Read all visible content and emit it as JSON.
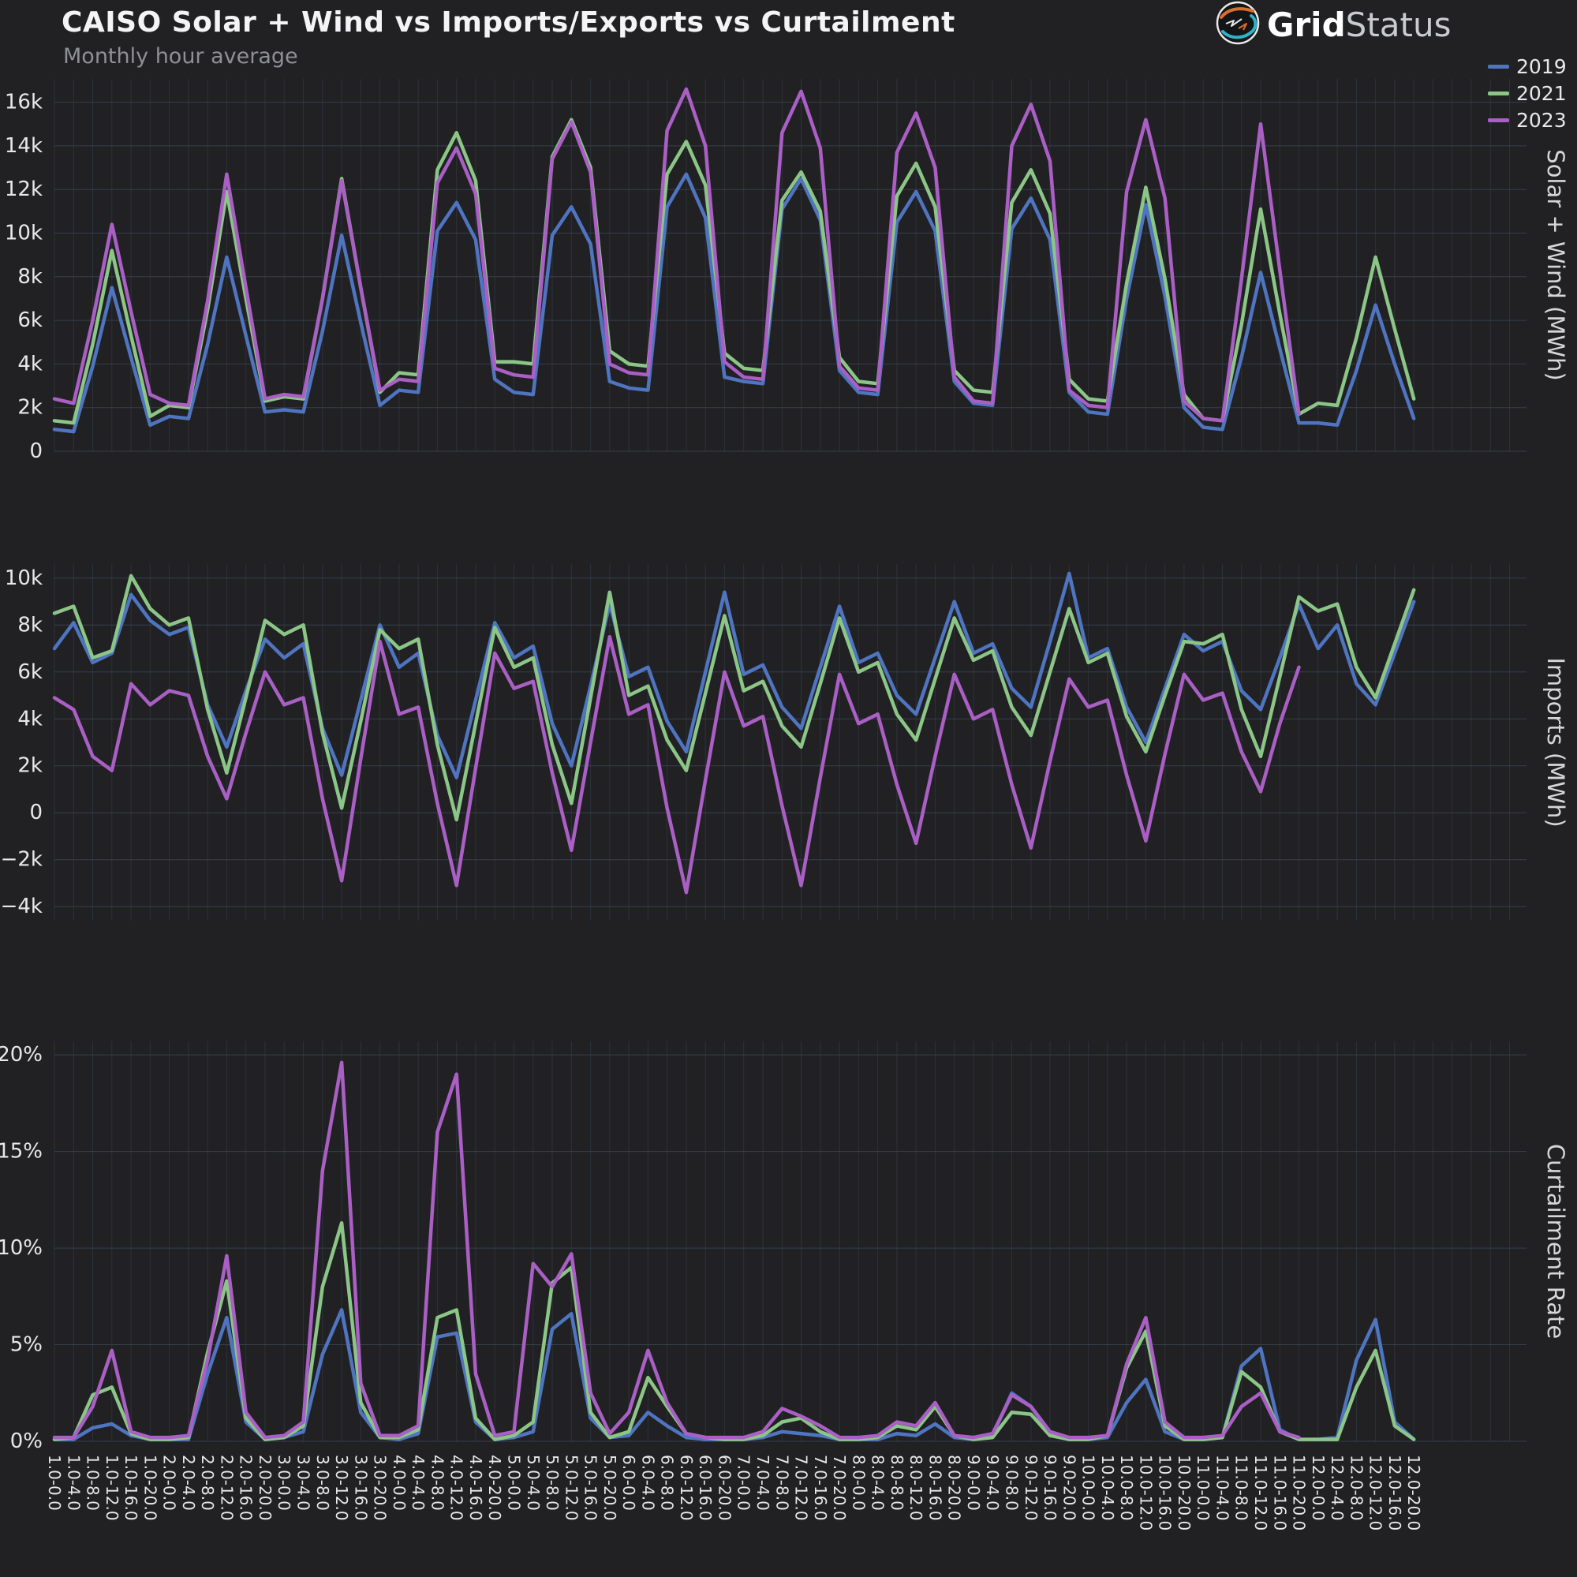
{
  "header": {
    "title": "CAISO Solar + Wind vs Imports/Exports vs Curtailment",
    "subtitle": "Monthly hour average",
    "logo": {
      "bold": "Grid",
      "light": "Status"
    }
  },
  "legend": [
    {
      "label": "2019",
      "color": "#4f74c0"
    },
    {
      "label": "2021",
      "color": "#8cc687"
    },
    {
      "label": "2023",
      "color": "#aa5fc5"
    }
  ],
  "chart_data": {
    "type": "line",
    "title": "CAISO Solar + Wind vs Imports/Exports vs Curtailment",
    "subtitle": "Monthly hour average",
    "x_axis_note": "month.0-hour.0 (monthly hour average, 4-hour steps), Jan-Dec; 2023 data ends in November",
    "grid": true,
    "legend_position": "top-right",
    "background_color": "#212124",
    "grid_color": "#3a4754",
    "tick_color": "#e8e8ea",
    "axis_title_color": "#d6d6d8",
    "series_names": [
      "2019",
      "2021",
      "2023"
    ],
    "x_tick_labels": [
      "1.0-0.0",
      "1.0-4.0",
      "1.0-8.0",
      "1.0-12.0",
      "1.0-16.0",
      "1.0-20.0",
      "2.0-0.0",
      "2.0-4.0",
      "2.0-8.0",
      "2.0-12.0",
      "2.0-16.0",
      "2.0-20.0",
      "3.0-0.0",
      "3.0-4.0",
      "3.0-8.0",
      "3.0-12.0",
      "3.0-16.0",
      "3.0-20.0",
      "4.0-0.0",
      "4.0-4.0",
      "4.0-8.0",
      "4.0-12.0",
      "4.0-16.0",
      "4.0-20.0",
      "5.0-0.0",
      "5.0-4.0",
      "5.0-8.0",
      "5.0-12.0",
      "5.0-16.0",
      "5.0-20.0",
      "6.0-0.0",
      "6.0-4.0",
      "6.0-8.0",
      "6.0-12.0",
      "6.0-16.0",
      "6.0-20.0",
      "7.0-0.0",
      "7.0-4.0",
      "7.0-8.0",
      "7.0-12.0",
      "7.0-16.0",
      "7.0-20.0",
      "8.0-0.0",
      "8.0-4.0",
      "8.0-8.0",
      "8.0-12.0",
      "8.0-16.0",
      "8.0-20.0",
      "9.0-0.0",
      "9.0-4.0",
      "9.0-8.0",
      "9.0-12.0",
      "9.0-16.0",
      "9.0-20.0",
      "10.0-0.0",
      "10.0-4.0",
      "10.0-8.0",
      "10.0-12.0",
      "10.0-16.0",
      "10.0-20.0",
      "11.0-0.0",
      "11.0-4.0",
      "11.0-8.0",
      "11.0-12.0",
      "11.0-16.0",
      "11.0-20.0",
      "12.0-0.0",
      "12.0-4.0",
      "12.0-8.0",
      "12.0-12.0",
      "12.0-16.0",
      "12.0-20.0"
    ],
    "subplots": [
      {
        "title": "Solar + Wind (MWh)",
        "ylim": [
          0,
          17070
        ],
        "px": {
          "top": 100,
          "bottom": 572
        },
        "yticks": [
          {
            "v": 0,
            "label": "0"
          },
          {
            "v": 2000,
            "label": "2k"
          },
          {
            "v": 4000,
            "label": "4k"
          },
          {
            "v": 6000,
            "label": "6k"
          },
          {
            "v": 8000,
            "label": "8k"
          },
          {
            "v": 10000,
            "label": "10k"
          },
          {
            "v": 12000,
            "label": "12k"
          },
          {
            "v": 14000,
            "label": "14k"
          },
          {
            "v": 16000,
            "label": "16k"
          }
        ],
        "series": [
          {
            "name": "2019",
            "color": "#4f74c0",
            "values": [
              1000,
              900,
              3900,
              7500,
              4300,
              1200,
              1600,
              1500,
              4900,
              8900,
              5300,
              1800,
              1900,
              1800,
              5500,
              9900,
              5900,
              2100,
              2800,
              2700,
              10100,
              11400,
              9700,
              3300,
              2700,
              2600,
              9900,
              11200,
              9500,
              3200,
              2900,
              2800,
              11200,
              12700,
              10700,
              3400,
              3200,
              3100,
              11100,
              12500,
              10600,
              3700,
              2700,
              2600,
              10500,
              11900,
              10100,
              3200,
              2200,
              2100,
              10200,
              11600,
              9700,
              2700,
              1800,
              1700,
              7000,
              11300,
              7100,
              2000,
              1100,
              1000,
              4300,
              8200,
              4700,
              1300,
              1300,
              1200,
              3700,
              6700,
              4000,
              1500
            ]
          },
          {
            "name": "2021",
            "color": "#8cc687",
            "values": [
              1400,
              1300,
              4900,
              9200,
              5300,
              1600,
              2100,
              2000,
              6500,
              11900,
              7000,
              2300,
              2500,
              2400,
              7000,
              12500,
              7500,
              2700,
              3600,
              3500,
              12900,
              14600,
              12400,
              4100,
              4100,
              4000,
              13500,
              15200,
              13000,
              4600,
              4000,
              3900,
              12700,
              14200,
              12200,
              4500,
              3800,
              3700,
              11500,
              12800,
              11000,
              4300,
              3200,
              3100,
              11700,
              13200,
              11200,
              3700,
              2800,
              2700,
              11400,
              12900,
              10900,
              3300,
              2400,
              2300,
              7700,
              12100,
              7900,
              2600,
              1500,
              1400,
              5800,
              11100,
              6300,
              1700,
              2200,
              2100,
              5200,
              8900,
              5600,
              2400
            ]
          },
          {
            "name": "2023",
            "color": "#aa5fc5",
            "values": [
              2400,
              2200,
              6000,
              10400,
              6400,
              2600,
              2200,
              2100,
              6900,
              12700,
              7500,
              2400,
              2600,
              2500,
              7000,
              12400,
              7500,
              2800,
              3300,
              3200,
              12300,
              13900,
              11800,
              3800,
              3500,
              3400,
              13400,
              15100,
              12800,
              4000,
              3600,
              3500,
              14700,
              16600,
              14000,
              4100,
              3400,
              3300,
              14600,
              16500,
              13900,
              3900,
              2900,
              2800,
              13700,
              15500,
              13000,
              3400,
              2300,
              2200,
              14000,
              15900,
              13300,
              2800,
              2100,
              2000,
              11900,
              15200,
              11600,
              2300,
              1500,
              1400,
              7900,
              15000,
              8300,
              1700
            ]
          }
        ]
      },
      {
        "title": "Imports (MWh)",
        "ylim": [
          -4600,
          10600
        ],
        "px": {
          "top": 715,
          "bottom": 1167
        },
        "yticks": [
          {
            "v": 10000,
            "label": "10k"
          },
          {
            "v": 8000,
            "label": "8k"
          },
          {
            "v": 6000,
            "label": "6k"
          },
          {
            "v": 4000,
            "label": "4k"
          },
          {
            "v": 2000,
            "label": "2k"
          },
          {
            "v": 0,
            "label": "0"
          },
          {
            "v": -2000,
            "label": "−2k"
          },
          {
            "v": -4000,
            "label": "−4k"
          }
        ],
        "series": [
          {
            "name": "2019",
            "color": "#4f74c0",
            "values": [
              7000,
              8100,
              6400,
              6800,
              9300,
              8200,
              7600,
              7900,
              4600,
              2800,
              5200,
              7400,
              6600,
              7200,
              3600,
              1600,
              4800,
              8000,
              6200,
              6800,
              3300,
              1500,
              4800,
              8100,
              6600,
              7100,
              3800,
              2000,
              5400,
              8900,
              5800,
              6200,
              3900,
              2600,
              6000,
              9400,
              5900,
              6300,
              4500,
              3600,
              6200,
              8800,
              6400,
              6800,
              5000,
              4200,
              6600,
              9000,
              6800,
              7200,
              5300,
              4500,
              7300,
              10200,
              6600,
              7000,
              4500,
              3000,
              5300,
              7600,
              6900,
              7300,
              5200,
              4400,
              6600,
              8900,
              7000,
              8000,
              5500,
              4600,
              6800,
              9000
            ]
          },
          {
            "name": "2021",
            "color": "#8cc687",
            "values": [
              8500,
              8800,
              6600,
              6900,
              10100,
              8700,
              8000,
              8300,
              4400,
              1700,
              4900,
              8200,
              7600,
              8000,
              3400,
              200,
              3900,
              7800,
              7000,
              7400,
              2900,
              -300,
              3800,
              7900,
              6200,
              6600,
              2900,
              400,
              4900,
              9400,
              5000,
              5400,
              3100,
              1800,
              5100,
              8400,
              5200,
              5600,
              3700,
              2800,
              5500,
              8300,
              6000,
              6400,
              4200,
              3100,
              5700,
              8300,
              6500,
              6900,
              4500,
              3300,
              6000,
              8700,
              6400,
              6800,
              4100,
              2600,
              5000,
              7300,
              7200,
              7600,
              4400,
              2400,
              5800,
              9200,
              8600,
              8900,
              6200,
              4900,
              7200,
              9500
            ]
          },
          {
            "name": "2023",
            "color": "#aa5fc5",
            "values": [
              4900,
              4400,
              2400,
              1800,
              5500,
              4600,
              5200,
              5000,
              2400,
              600,
              3400,
              6000,
              4600,
              4900,
              600,
              -2900,
              2300,
              7300,
              4200,
              4500,
              400,
              -3100,
              1900,
              6800,
              5300,
              5600,
              1700,
              -1600,
              3000,
              7500,
              4200,
              4600,
              200,
              -3400,
              1400,
              6000,
              3700,
              4100,
              300,
              -3100,
              1500,
              5900,
              3800,
              4200,
              1200,
              -1300,
              2400,
              5900,
              4000,
              4400,
              1200,
              -1500,
              2200,
              5700,
              4500,
              4800,
              1600,
              -1200,
              2500,
              5900,
              4800,
              5100,
              2600,
              900,
              3800,
              6200
            ]
          }
        ]
      },
      {
        "title": "Curtailment Rate",
        "ylim": [
          0,
          20.7
        ],
        "px": {
          "top": 1320,
          "bottom": 1827
        },
        "yticks": [
          {
            "v": 0,
            "label": "0%"
          },
          {
            "v": 5,
            "label": "5%"
          },
          {
            "v": 10,
            "label": "10%"
          },
          {
            "v": 15,
            "label": "15%"
          },
          {
            "v": 20,
            "label": "20%"
          }
        ],
        "series": [
          {
            "name": "2019",
            "color": "#4f74c0",
            "values": [
              0.1,
              0.1,
              0.7,
              0.9,
              0.3,
              0.1,
              0.1,
              0.1,
              3.5,
              6.4,
              1.0,
              0.1,
              0.2,
              0.5,
              4.5,
              6.8,
              1.5,
              0.2,
              0.1,
              0.4,
              5.4,
              5.6,
              1.0,
              0.1,
              0.2,
              0.5,
              5.8,
              6.6,
              1.2,
              0.2,
              0.3,
              1.5,
              0.8,
              0.2,
              0.1,
              0.1,
              0.1,
              0.2,
              0.5,
              0.4,
              0.3,
              0.1,
              0.1,
              0.1,
              0.4,
              0.3,
              0.9,
              0.2,
              0.1,
              0.3,
              2.5,
              1.8,
              0.4,
              0.1,
              0.1,
              0.2,
              2.0,
              3.2,
              0.5,
              0.1,
              0.1,
              0.2,
              3.9,
              4.8,
              0.6,
              0.1,
              0.1,
              0.2,
              4.2,
              6.3,
              1.0,
              0.1
            ]
          },
          {
            "name": "2021",
            "color": "#8cc687",
            "values": [
              0.1,
              0.2,
              2.4,
              2.8,
              0.4,
              0.1,
              0.1,
              0.2,
              4.6,
              8.3,
              1.2,
              0.1,
              0.2,
              0.8,
              8.0,
              11.3,
              2.0,
              0.2,
              0.2,
              0.6,
              6.4,
              6.8,
              1.2,
              0.1,
              0.3,
              1.0,
              8.2,
              9.0,
              1.5,
              0.2,
              0.5,
              3.3,
              1.8,
              0.4,
              0.2,
              0.1,
              0.1,
              0.3,
              1.0,
              1.2,
              0.5,
              0.1,
              0.1,
              0.2,
              0.8,
              0.6,
              1.8,
              0.3,
              0.1,
              0.2,
              1.5,
              1.4,
              0.3,
              0.1,
              0.1,
              0.3,
              3.8,
              5.7,
              0.8,
              0.1,
              0.1,
              0.2,
              3.6,
              2.8,
              0.5,
              0.1,
              0.1,
              0.1,
              2.8,
              4.7,
              0.8,
              0.1
            ]
          },
          {
            "name": "2023",
            "color": "#aa5fc5",
            "values": [
              0.2,
              0.2,
              1.8,
              4.7,
              0.5,
              0.2,
              0.2,
              0.3,
              4.2,
              9.6,
              1.5,
              0.2,
              0.3,
              1.0,
              14.0,
              19.6,
              3.0,
              0.3,
              0.3,
              0.8,
              16.0,
              19.0,
              3.5,
              0.3,
              0.5,
              9.2,
              8.0,
              9.7,
              2.5,
              0.4,
              1.5,
              4.7,
              2.0,
              0.4,
              0.2,
              0.2,
              0.2,
              0.5,
              1.7,
              1.3,
              0.8,
              0.2,
              0.2,
              0.3,
              1.0,
              0.8,
              2.0,
              0.3,
              0.2,
              0.4,
              2.4,
              1.8,
              0.5,
              0.2,
              0.2,
              0.3,
              4.0,
              6.4,
              1.0,
              0.2,
              0.2,
              0.3,
              1.8,
              2.5,
              0.5,
              0.2
            ]
          }
        ]
      }
    ]
  }
}
